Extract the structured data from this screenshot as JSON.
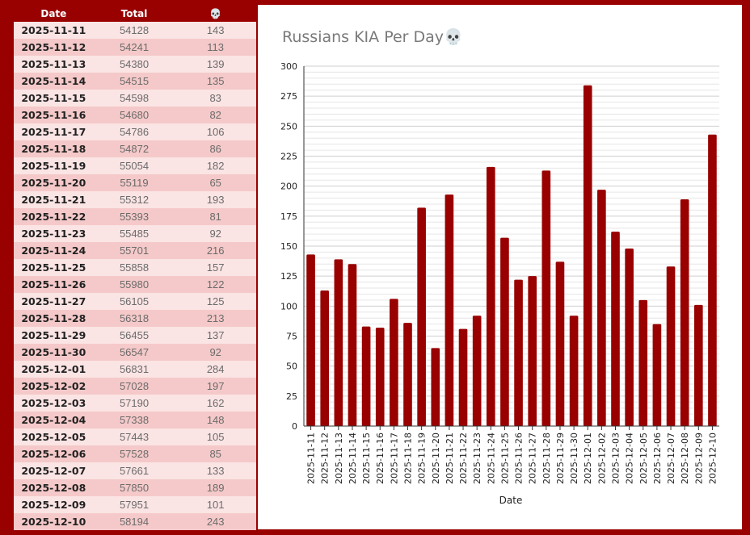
{
  "table": {
    "headers": [
      "Date",
      "Total",
      "💀"
    ],
    "rows": [
      [
        "2025-11-11",
        "54128",
        "143"
      ],
      [
        "2025-11-12",
        "54241",
        "113"
      ],
      [
        "2025-11-13",
        "54380",
        "139"
      ],
      [
        "2025-11-14",
        "54515",
        "135"
      ],
      [
        "2025-11-15",
        "54598",
        "83"
      ],
      [
        "2025-11-16",
        "54680",
        "82"
      ],
      [
        "2025-11-17",
        "54786",
        "106"
      ],
      [
        "2025-11-18",
        "54872",
        "86"
      ],
      [
        "2025-11-19",
        "55054",
        "182"
      ],
      [
        "2025-11-20",
        "55119",
        "65"
      ],
      [
        "2025-11-21",
        "55312",
        "193"
      ],
      [
        "2025-11-22",
        "55393",
        "81"
      ],
      [
        "2025-11-23",
        "55485",
        "92"
      ],
      [
        "2025-11-24",
        "55701",
        "216"
      ],
      [
        "2025-11-25",
        "55858",
        "157"
      ],
      [
        "2025-11-26",
        "55980",
        "122"
      ],
      [
        "2025-11-27",
        "56105",
        "125"
      ],
      [
        "2025-11-28",
        "56318",
        "213"
      ],
      [
        "2025-11-29",
        "56455",
        "137"
      ],
      [
        "2025-11-30",
        "56547",
        "92"
      ],
      [
        "2025-12-01",
        "56831",
        "284"
      ],
      [
        "2025-12-02",
        "57028",
        "197"
      ],
      [
        "2025-12-03",
        "57190",
        "162"
      ],
      [
        "2025-12-04",
        "57338",
        "148"
      ],
      [
        "2025-12-05",
        "57443",
        "105"
      ],
      [
        "2025-12-06",
        "57528",
        "85"
      ],
      [
        "2025-12-07",
        "57661",
        "133"
      ],
      [
        "2025-12-08",
        "57850",
        "189"
      ],
      [
        "2025-12-09",
        "57951",
        "101"
      ],
      [
        "2025-12-10",
        "58194",
        "243"
      ]
    ]
  },
  "colors": {
    "background": "#990000",
    "bar": "#990000",
    "row_light": "#fbe4e4",
    "row_dark": "#f5c9c9"
  },
  "chart_data": {
    "type": "bar",
    "title": "Russians KIA Per Day💀",
    "xlabel": "Date",
    "ylabel": "",
    "ylim": [
      0,
      300
    ],
    "yticks": [
      0,
      25,
      50,
      75,
      100,
      125,
      150,
      175,
      200,
      225,
      250,
      275,
      300
    ],
    "grid": "horizontal",
    "categories": [
      "2025-11-11",
      "2025-11-12",
      "2025-11-13",
      "2025-11-14",
      "2025-11-15",
      "2025-11-16",
      "2025-11-17",
      "2025-11-18",
      "2025-11-19",
      "2025-11-20",
      "2025-11-21",
      "2025-11-22",
      "2025-11-23",
      "2025-11-24",
      "2025-11-25",
      "2025-11-26",
      "2025-11-27",
      "2025-11-28",
      "2025-11-29",
      "2025-11-30",
      "2025-12-01",
      "2025-12-02",
      "2025-12-03",
      "2025-12-04",
      "2025-12-05",
      "2025-12-06",
      "2025-12-07",
      "2025-12-08",
      "2025-12-09",
      "2025-12-10"
    ],
    "values": [
      143,
      113,
      139,
      135,
      83,
      82,
      106,
      86,
      182,
      65,
      193,
      81,
      92,
      216,
      157,
      122,
      125,
      213,
      137,
      92,
      284,
      197,
      162,
      148,
      105,
      85,
      133,
      189,
      101,
      243
    ]
  }
}
